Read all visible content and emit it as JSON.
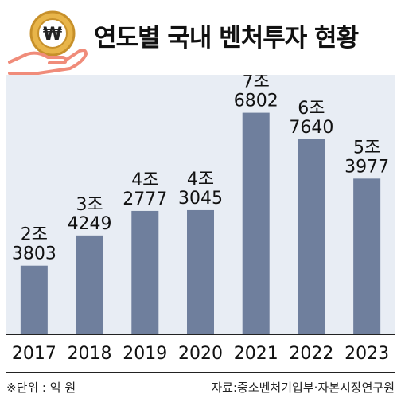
{
  "header": {
    "title": "연도별 국내 벤처투자 현황"
  },
  "footer": {
    "unit_note": "※단위 : 억 원",
    "source": "자료:중소벤처기업부·자본시장연구원"
  },
  "icon": {
    "name": "hand-holding-won-coin-icon",
    "coin_color": "#e8b54a",
    "hand_color": "#f08c7a"
  },
  "colors": {
    "bar": "#6f7f9d",
    "plot_bg": "#e8edf4"
  },
  "chart_data": {
    "type": "bar",
    "title": "연도별 국내 벤처투자 현황",
    "unit": "억 원",
    "categories": [
      "2017",
      "2018",
      "2019",
      "2020",
      "2021",
      "2022",
      "2023"
    ],
    "values": [
      23803,
      34249,
      42777,
      43045,
      76802,
      67640,
      53977
    ],
    "labels": [
      [
        "2조",
        "3803"
      ],
      [
        "3조",
        "4249"
      ],
      [
        "4조",
        "2777"
      ],
      [
        "4조",
        "3045"
      ],
      [
        "7조",
        "6802"
      ],
      [
        "6조",
        "7640"
      ],
      [
        "5조",
        "3977"
      ]
    ],
    "grid": false
  }
}
